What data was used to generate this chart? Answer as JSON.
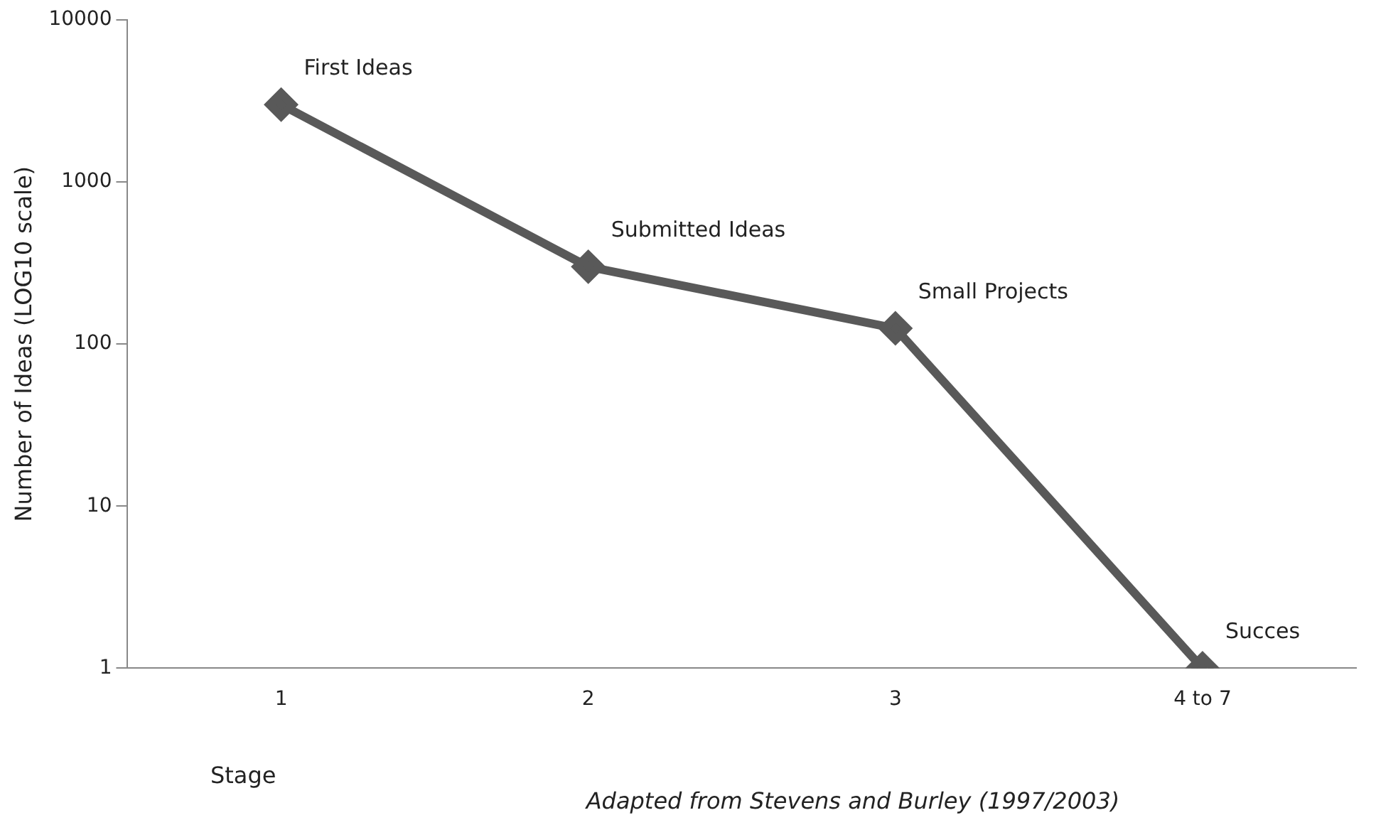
{
  "chart_data": {
    "type": "line",
    "ylabel": "Number of Ideas (LOG10 scale)",
    "xlabel": "Stage",
    "categories": [
      "1",
      "2",
      "3",
      "4 to 7"
    ],
    "series": [
      {
        "color": "#595959",
        "values": [
          3000,
          300,
          125,
          1
        ]
      }
    ],
    "log": "y",
    "ylim": [
      1,
      10000
    ],
    "yticks": [
      1,
      10,
      100,
      1000,
      10000
    ],
    "grid": false,
    "legend": false,
    "marker": "diamond",
    "line_style": "solid",
    "annotations": [
      {
        "text": "First Ideas",
        "x": "1",
        "y": 3000
      },
      {
        "text": "Submitted Ideas",
        "x": "2",
        "y": 300
      },
      {
        "text": "Small Projects",
        "x": "3",
        "y": 125
      },
      {
        "text": "Succes",
        "x": "4 to 7",
        "y": 1
      },
      "Adapted from Stevens and Burley (1997/2003)"
    ]
  }
}
